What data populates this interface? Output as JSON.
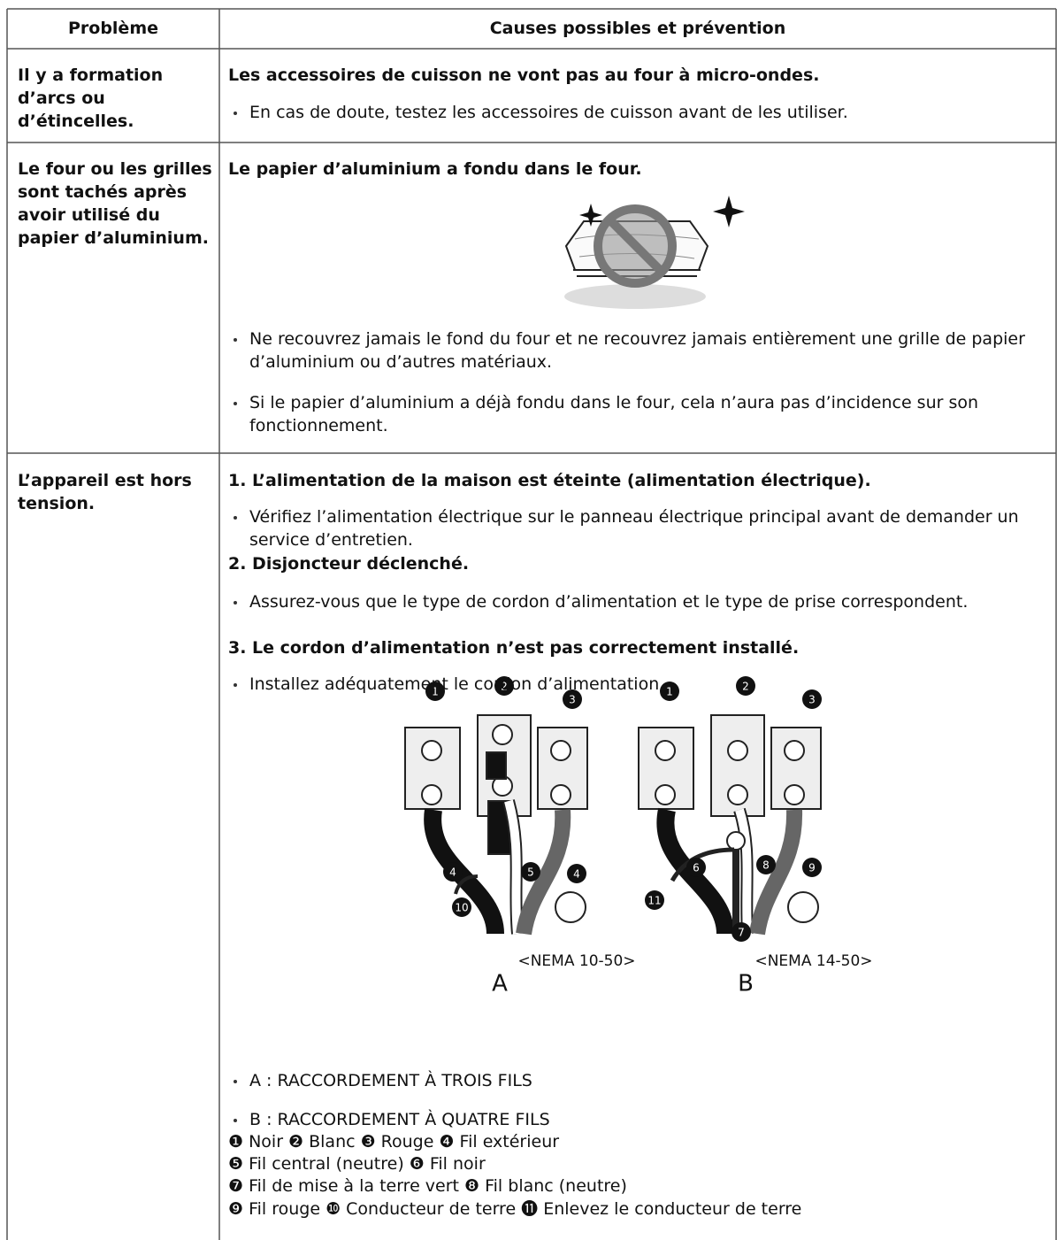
{
  "table": {
    "header": [
      "Problème",
      "Causes possibles et prévention"
    ],
    "rows": [
      {
        "problem": "Il y a formation d’arcs ou d’étincelles.",
        "causes": [
          {
            "cause": "Les accessoires de cuisson ne vont pas au four à micro-ondes.",
            "bullets": [
              "En cas de doute, testez les accessoires de cuisson avant de les utiliser."
            ]
          }
        ]
      },
      {
        "problem": "Le four ou les grilles sont tachés après avoir utilisé du papier d’aluminium.",
        "causes": [
          {
            "cause": "Le papier d’aluminium a fondu dans le four.",
            "bullets": [
              "Ne recouvrez jamais le fond du four et ne recouvrez jamais entièrement une grille de papier d’aluminium ou d’autres matériaux.",
              "Si le papier d’aluminium a déjà fondu dans le four, cela n’aura pas d’incidence sur son fonctionnement."
            ]
          }
        ]
      },
      {
        "problem": "L’appareil est hors tension.",
        "causes": [
          {
            "cause": "1. L’alimentation de la maison est éteinte (alimentation électrique).",
            "bullets": [
              "Vérifiez l’alimentation électrique sur le panneau électrique principal avant de demander un service d’entretien."
            ]
          },
          {
            "cause": "2. Disjoncteur déclenché.",
            "bullets": [
              "Assurez-vous que le type de cordon d’alimentation et le type de prise correspondent."
            ]
          },
          {
            "cause": "3. Le cordon d’alimentation n’est pas correctement installé.",
            "bullets": [
              "Installez adéquatement le cordon d’alimentation."
            ]
          }
        ],
        "diagram": {
          "a": {
            "callouts": [
              "1",
              "2",
              "3",
              "4",
              "10",
              "5",
              "4"
            ],
            "plug": "<NEMA 10-50>",
            "letter": "A"
          },
          "b": {
            "callouts": [
              "1",
              "2",
              "3",
              "11",
              "6",
              "8",
              "7",
              "9"
            ],
            "plug": "<NEMA 14-50>",
            "letter": "B"
          }
        },
        "notes": [
          "A : RACCORDEMENT À TROIS FILS",
          "B : RACCORDEMENT À QUATRE FILS"
        ],
        "legend": [
          "❶ Noir ❷ Blanc ❸ Rouge ❹ Fil extérieur",
          "❺ Fil central (neutre) ❻ Fil noir",
          "❼ Fil de mise à la terre vert ❽ Fil blanc (neutre)",
          "❾ Fil rouge ❿ Conducteur de terre ⓫ Enlevez le conducteur de terre"
        ]
      }
    ]
  }
}
